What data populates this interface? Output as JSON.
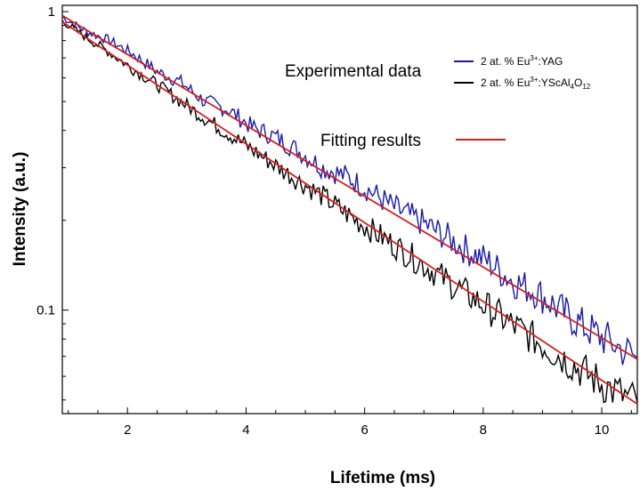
{
  "chart_data": {
    "type": "line",
    "title": "",
    "xlabel": "Lifetime (ms)",
    "ylabel": "Intensity (a.u.)",
    "xlim": [
      0.9,
      10.6
    ],
    "ylim": [
      0.045,
      1.05
    ],
    "yscale": "log",
    "x_ticks": [
      2,
      4,
      6,
      8,
      10
    ],
    "y_ticks": [
      {
        "value": 1,
        "label": "1"
      },
      {
        "value": 0.1,
        "label": "0.1"
      }
    ],
    "grid": false,
    "legend": {
      "experimental_label": "Experimental data",
      "fit_label": "Fitting results",
      "series_yag": {
        "prefix": "2 at. % Eu",
        "sup": "3+",
        "suffix": ":YAG"
      },
      "series_ysc": {
        "prefix": "2 at. % Eu",
        "sup": "3+",
        "mid": ":YScAl",
        "sub1": "4",
        "mid2": "O",
        "sub2": "12"
      }
    },
    "series": [
      {
        "key": "yag",
        "color": "#1a1aa8",
        "x": [
          0.9,
          1.3,
          1.7,
          2.1,
          2.5,
          2.9,
          3.3,
          3.7,
          4.1,
          4.5,
          4.9,
          5.3,
          5.7,
          6.1,
          6.5,
          6.9,
          7.3,
          7.7,
          8.1,
          8.5,
          8.9,
          9.3,
          9.7,
          10.1,
          10.6
        ],
        "values": [
          0.96,
          0.86,
          0.8,
          0.72,
          0.63,
          0.58,
          0.5,
          0.47,
          0.41,
          0.38,
          0.34,
          0.3,
          0.28,
          0.25,
          0.22,
          0.2,
          0.18,
          0.16,
          0.145,
          0.125,
          0.115,
          0.1,
          0.088,
          0.079,
          0.069
        ]
      },
      {
        "key": "ysc",
        "color": "#000000",
        "x": [
          0.9,
          1.3,
          1.7,
          2.1,
          2.5,
          2.9,
          3.3,
          3.7,
          4.1,
          4.5,
          4.9,
          5.3,
          5.7,
          6.1,
          6.5,
          6.9,
          7.3,
          7.7,
          8.1,
          8.5,
          8.9,
          9.3,
          9.7,
          10.1,
          10.6
        ],
        "values": [
          0.93,
          0.82,
          0.73,
          0.64,
          0.57,
          0.5,
          0.44,
          0.39,
          0.345,
          0.305,
          0.27,
          0.24,
          0.21,
          0.186,
          0.165,
          0.146,
          0.129,
          0.114,
          0.101,
          0.089,
          0.079,
          0.07,
          0.062,
          0.055,
          0.049
        ]
      },
      {
        "key": "fit_yag",
        "color": "#d42020",
        "x": [
          0.9,
          10.6
        ],
        "values": [
          0.97,
          0.0685
        ]
      },
      {
        "key": "fit_ysc",
        "color": "#d42020",
        "x": [
          0.9,
          10.6
        ],
        "values": [
          0.925,
          0.0485
        ]
      }
    ],
    "colors": {
      "yag": "#1a1aa8",
      "ysc": "#000000",
      "fit": "#d42020"
    }
  }
}
